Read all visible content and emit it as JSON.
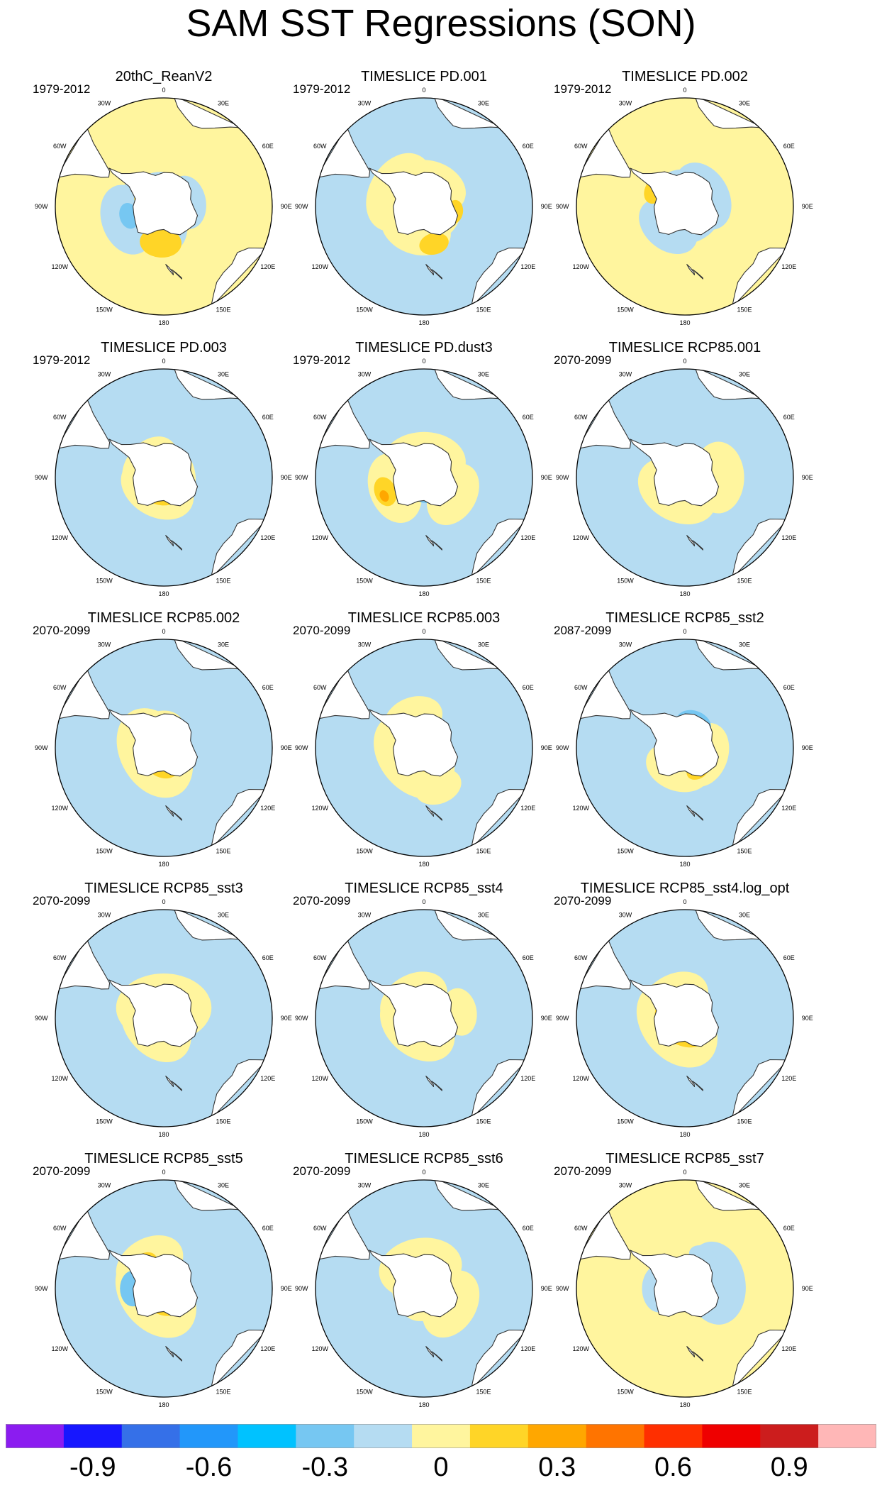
{
  "title": "SAM SST Regressions (SON)",
  "lon_labels": [
    "0",
    "30E",
    "60E",
    "90E",
    "120E",
    "150E",
    "180",
    "150W",
    "120W",
    "90W",
    "60W",
    "30W"
  ],
  "colors": {
    "land": "#ffffff",
    "coast": "#333333",
    "levels": [
      "#8b1cf0",
      "#1717ff",
      "#3570e8",
      "#2297fa",
      "#00c2ff",
      "#76c7f2",
      "#b5dcf2",
      "#fff59e",
      "#ffd527",
      "#ffa700",
      "#ff7400",
      "#ff2f00",
      "#ef0000",
      "#cc1d1d",
      "#ffb7b7"
    ]
  },
  "colorbar": {
    "labels": [
      "-0.9",
      "-0.6",
      "-0.3",
      "0",
      "0.3",
      "0.6",
      "0.9"
    ]
  },
  "panels": [
    {
      "title": "20thC_ReanV2",
      "period": "1979-2012",
      "bg": 7,
      "blobs": [
        [
          6,
          250,
          -0.25,
          0.6
        ],
        [
          6,
          230,
          -0.7,
          0.7
        ],
        [
          6,
          80,
          -0.55,
          0.45
        ],
        [
          6,
          20,
          -0.8,
          0.55
        ],
        [
          8,
          185,
          -0.3,
          0.35
        ],
        [
          8,
          175,
          -0.55,
          0.25
        ],
        [
          8,
          300,
          -0.55,
          0.2
        ],
        [
          5,
          255,
          -0.3,
          0.22
        ]
      ]
    },
    {
      "title": "TIMESLICE PD.001",
      "period": "1979-2012",
      "bg": 6,
      "blobs": [
        [
          7,
          300,
          -0.45,
          0.7
        ],
        [
          7,
          20,
          -0.6,
          0.6
        ],
        [
          7,
          200,
          -0.55,
          0.6
        ],
        [
          7,
          120,
          -0.6,
          0.4
        ],
        [
          8,
          165,
          -0.25,
          0.25
        ],
        [
          8,
          100,
          -0.4,
          0.2
        ]
      ]
    },
    {
      "title": "TIMESLICE PD.002",
      "period": "1979-2012",
      "bg": 7,
      "blobs": [
        [
          6,
          60,
          -0.6,
          0.6
        ],
        [
          6,
          220,
          -0.5,
          0.55
        ],
        [
          6,
          150,
          -0.7,
          0.5
        ],
        [
          6,
          330,
          -0.6,
          0.4
        ],
        [
          8,
          300,
          -0.35,
          0.25
        ],
        [
          8,
          230,
          -0.7,
          0.2
        ],
        [
          9,
          300,
          -0.45,
          0.1
        ]
      ]
    },
    {
      "title": "TIMESLICE PD.003",
      "period": "1979-2012",
      "bg": 6,
      "blobs": [
        [
          7,
          210,
          -0.75,
          0.65
        ],
        [
          7,
          310,
          -0.65,
          0.55
        ],
        [
          7,
          80,
          -0.8,
          0.5
        ],
        [
          8,
          200,
          -0.75,
          0.35
        ],
        [
          8,
          315,
          -0.6,
          0.25
        ],
        [
          8,
          145,
          -0.6,
          0.2
        ]
      ]
    },
    {
      "title": "TIMESLICE PD.dust3",
      "period": "1979-2012",
      "bg": 6,
      "blobs": [
        [
          7,
          0,
          -0.7,
          0.7
        ],
        [
          7,
          250,
          -0.4,
          0.6
        ],
        [
          7,
          120,
          -0.35,
          0.55
        ],
        [
          8,
          250,
          -0.2,
          0.25
        ],
        [
          9,
          245,
          -0.15,
          0.1
        ],
        [
          5,
          150,
          -0.75,
          0.3
        ]
      ]
    },
    {
      "title": "TIMESLICE RCP85.001",
      "period": "2070-2099",
      "bg": 6,
      "blobs": [
        [
          7,
          210,
          -0.7,
          0.7
        ],
        [
          7,
          90,
          -0.35,
          0.6
        ],
        [
          7,
          320,
          -0.8,
          0.45
        ],
        [
          8,
          200,
          -0.9,
          0.4
        ],
        [
          8,
          330,
          -0.8,
          0.25
        ],
        [
          5,
          30,
          -0.6,
          0.3
        ]
      ]
    },
    {
      "title": "TIMESLICE RCP85.002",
      "period": "2070-2099",
      "bg": 6,
      "blobs": [
        [
          7,
          240,
          -0.8,
          0.8
        ],
        [
          7,
          330,
          -0.7,
          0.5
        ],
        [
          7,
          100,
          -0.8,
          0.35
        ],
        [
          8,
          240,
          -0.9,
          0.5
        ],
        [
          9,
          220,
          -0.95,
          0.35
        ],
        [
          10,
          215,
          -0.95,
          0.2
        ]
      ]
    },
    {
      "title": "TIMESLICE RCP85.003",
      "period": "2070-2099",
      "bg": 6,
      "blobs": [
        [
          7,
          230,
          -0.75,
          0.8
        ],
        [
          7,
          340,
          -0.4,
          0.5
        ],
        [
          7,
          160,
          -0.2,
          0.4
        ],
        [
          8,
          220,
          -0.9,
          0.4
        ],
        [
          9,
          210,
          -0.95,
          0.2
        ],
        [
          5,
          40,
          -0.8,
          0.4
        ],
        [
          4,
          20,
          -0.95,
          0.1
        ]
      ]
    },
    {
      "title": "TIMESLICE RCP85_sst2",
      "period": "2087-2099",
      "bg": 6,
      "blobs": [
        [
          7,
          200,
          -0.6,
          0.55
        ],
        [
          7,
          110,
          -0.6,
          0.55
        ],
        [
          7,
          320,
          -0.8,
          0.35
        ],
        [
          8,
          150,
          -0.5,
          0.2
        ],
        [
          5,
          20,
          -0.5,
          0.3
        ]
      ]
    },
    {
      "title": "TIMESLICE RCP85_sst3",
      "period": "2070-2099",
      "bg": 6,
      "blobs": [
        [
          7,
          0,
          -0.8,
          0.8
        ],
        [
          7,
          230,
          -0.8,
          0.7
        ],
        [
          7,
          270,
          -0.7,
          0.5
        ],
        [
          8,
          225,
          -0.92,
          0.2
        ]
      ]
    },
    {
      "title": "TIMESLICE RCP85_sst4",
      "period": "2070-2099",
      "bg": 6,
      "blobs": [
        [
          7,
          220,
          -0.8,
          0.7
        ],
        [
          7,
          330,
          -0.6,
          0.6
        ],
        [
          7,
          80,
          -0.3,
          0.4
        ],
        [
          7,
          180,
          -0.45,
          0.3
        ],
        [
          8,
          225,
          -0.92,
          0.3
        ],
        [
          5,
          20,
          -0.85,
          0.25
        ],
        [
          4,
          20,
          -0.95,
          0.08
        ]
      ]
    },
    {
      "title": "TIMESLICE RCP85_sst4.log_opt",
      "period": "2070-2099",
      "bg": 6,
      "blobs": [
        [
          7,
          230,
          -0.8,
          0.8
        ],
        [
          7,
          330,
          -0.6,
          0.6
        ],
        [
          8,
          220,
          -0.9,
          0.5
        ],
        [
          9,
          215,
          -0.95,
          0.3
        ],
        [
          10,
          212,
          -0.97,
          0.15
        ],
        [
          5,
          275,
          -0.9,
          0.25
        ],
        [
          4,
          280,
          -0.96,
          0.12
        ]
      ]
    },
    {
      "title": "TIMESLICE RCP85_sst5",
      "period": "2070-2099",
      "bg": 6,
      "blobs": [
        [
          7,
          230,
          -0.8,
          0.8
        ],
        [
          7,
          330,
          -0.45,
          0.6
        ],
        [
          8,
          230,
          -0.9,
          0.45
        ],
        [
          8,
          320,
          -0.4,
          0.25
        ],
        [
          9,
          215,
          -0.95,
          0.15
        ],
        [
          5,
          270,
          -0.4,
          0.3
        ]
      ]
    },
    {
      "title": "TIMESLICE RCP85_sst6",
      "period": "2070-2099",
      "bg": 6,
      "blobs": [
        [
          7,
          350,
          -0.6,
          0.7
        ],
        [
          7,
          250,
          -0.8,
          0.5
        ],
        [
          7,
          120,
          -0.4,
          0.6
        ],
        [
          7,
          180,
          -0.7,
          0.4
        ]
      ]
    },
    {
      "title": "TIMESLICE RCP85_sst7",
      "period": "2070-2099",
      "bg": 7,
      "blobs": [
        [
          6,
          80,
          -0.4,
          0.7
        ],
        [
          6,
          270,
          -0.5,
          0.4
        ],
        [
          6,
          150,
          -0.85,
          0.3
        ],
        [
          6,
          30,
          -0.3,
          0.25
        ]
      ]
    }
  ]
}
